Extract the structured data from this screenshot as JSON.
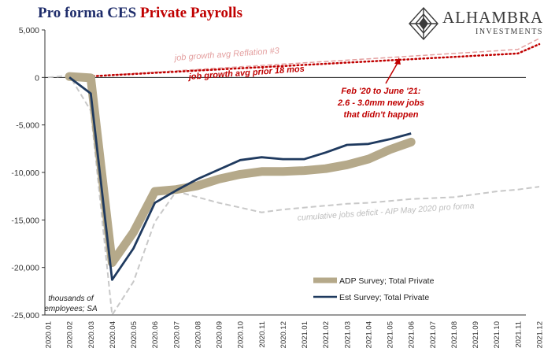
{
  "title": {
    "part1": "Pro forma CES",
    "part2": "Private Payrolls"
  },
  "logo": {
    "name": "ALHAMBRA",
    "sub": "INVESTMENTS"
  },
  "colors": {
    "adp": "#b5a98a",
    "est": "#1f3a5f",
    "deficit": "#c8c8c8",
    "reflation": "#e4a0a0",
    "prior18": "#c00000",
    "title_blue": "#1f2d6b",
    "title_red": "#c00000"
  },
  "chart_data": {
    "type": "line",
    "categories": [
      "2020.01",
      "2020.02",
      "2020.03",
      "2020.04",
      "2020.05",
      "2020.06",
      "2020.07",
      "2020.08",
      "2020.09",
      "2020.10",
      "2020.11",
      "2020.12",
      "2021.01",
      "2021.02",
      "2021.03",
      "2021.04",
      "2021.05",
      "2021.06",
      "2021.07",
      "2021.08",
      "2021.09",
      "2021.10",
      "2021.11",
      "2021.12"
    ],
    "ylim": [
      -25000,
      5000
    ],
    "yticks": [
      -25000,
      -20000,
      -15000,
      -10000,
      -5000,
      0,
      5000
    ],
    "ytick_labels": [
      "-25,000",
      "-20,000",
      "-15,000",
      "-10,000",
      "-5,000",
      "0",
      "5,000"
    ],
    "ylabel": "thousands of employees; SA",
    "series": [
      {
        "name": "ADP Survey; Total Private",
        "style": "thick",
        "values": [
          null,
          100,
          -50,
          -19500,
          -16300,
          -12000,
          -11800,
          -11400,
          -10700,
          -10200,
          -9900,
          -9900,
          -9800,
          -9600,
          -9200,
          -8600,
          -7600,
          -6800,
          null,
          null,
          null,
          null,
          null,
          null
        ]
      },
      {
        "name": "Est Survey; Total Private",
        "style": "solid",
        "values": [
          null,
          0,
          -1700,
          -21300,
          -18000,
          -13200,
          -11900,
          -10700,
          -9700,
          -8700,
          -8400,
          -8600,
          -8600,
          -7900,
          -7100,
          -7000,
          -6500,
          -5900,
          null,
          null,
          null,
          null,
          null,
          null
        ]
      },
      {
        "name": "",
        "style": "dashed",
        "values": [
          0,
          200,
          -3500,
          -25000,
          -21500,
          -15200,
          -12000,
          -12600,
          -13200,
          -13700,
          -14200,
          -13900,
          -13700,
          -13500,
          -13300,
          -13200,
          -13000,
          -12800,
          -12700,
          -12600,
          -12300,
          -12000,
          -11800,
          -11500
        ]
      },
      {
        "name": "",
        "style": "dashed",
        "values": [
          null,
          0,
          140,
          280,
          420,
          560,
          700,
          840,
          980,
          1120,
          1260,
          1400,
          1540,
          1680,
          1820,
          1960,
          2100,
          2240,
          2380,
          2520,
          2660,
          2800,
          2950,
          4100
        ]
      },
      {
        "name": "",
        "style": "dotted",
        "values": [
          null,
          0,
          120,
          240,
          360,
          480,
          600,
          720,
          840,
          960,
          1080,
          1200,
          1320,
          1440,
          1560,
          1680,
          1800,
          1920,
          2040,
          2160,
          2280,
          2400,
          2520,
          3500
        ]
      }
    ],
    "annotations": {
      "reflation": "job growth avg Reflation #3",
      "prior18": "job growth avg prior 18 mos",
      "feb_line1": "Feb '20 to June '21:",
      "feb_line2": "2.6 - 3.0mm new jobs",
      "feb_line3": "that didn't happen",
      "deficit": "cumulative jobs deficit - AIP May 2020 pro forma",
      "units_line1": "thousands of",
      "units_line2": "employees; SA"
    },
    "legend_placement": "bottom-right",
    "grid": false
  }
}
